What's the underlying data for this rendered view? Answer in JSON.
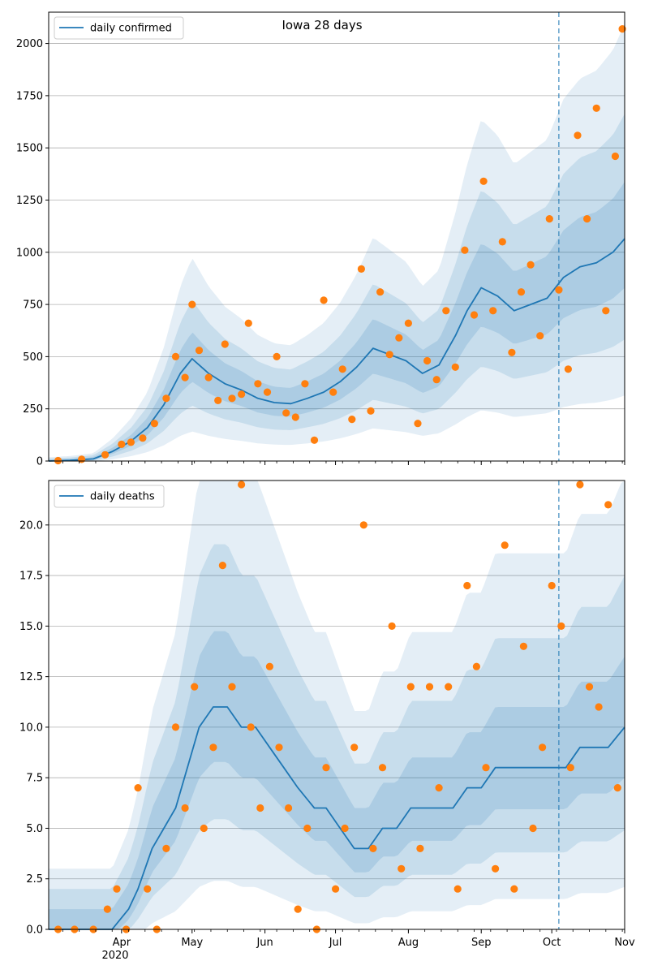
{
  "chart_data": [
    {
      "type": "line",
      "title": "Iowa 28 days",
      "legend": {
        "label": "daily confirmed",
        "placement": "top-left"
      },
      "xlim": [
        "2020-03-01",
        "2020-11-01"
      ],
      "ylim": [
        0,
        2150
      ],
      "yticks": [
        0,
        250,
        500,
        750,
        1000,
        1250,
        1500,
        1750,
        2000
      ],
      "ytick_labels": [
        "0",
        "250",
        "500",
        "750",
        "1000",
        "1250",
        "1500",
        "1750",
        "2000"
      ],
      "grid": "horizontal",
      "vline_date": "2020-10-04",
      "series": [
        {
          "name": "daily confirmed",
          "kind": "line",
          "x": [
            "2020-03-01",
            "2020-03-10",
            "2020-03-20",
            "2020-03-28",
            "2020-04-05",
            "2020-04-12",
            "2020-04-19",
            "2020-04-26",
            "2020-05-01",
            "2020-05-08",
            "2020-05-15",
            "2020-05-22",
            "2020-05-29",
            "2020-06-05",
            "2020-06-12",
            "2020-06-19",
            "2020-06-26",
            "2020-07-03",
            "2020-07-10",
            "2020-07-17",
            "2020-07-24",
            "2020-07-31",
            "2020-08-07",
            "2020-08-14",
            "2020-08-21",
            "2020-08-26",
            "2020-09-01",
            "2020-09-08",
            "2020-09-15",
            "2020-09-22",
            "2020-09-29",
            "2020-10-06",
            "2020-10-13",
            "2020-10-20",
            "2020-10-27",
            "2020-11-01"
          ],
          "y": [
            0,
            3,
            10,
            45,
            95,
            160,
            270,
            420,
            490,
            420,
            370,
            340,
            300,
            280,
            275,
            300,
            330,
            380,
            450,
            540,
            510,
            480,
            420,
            460,
            600,
            720,
            830,
            790,
            720,
            750,
            780,
            880,
            930,
            950,
            1000,
            1065
          ]
        },
        {
          "name": "",
          "kind": "scatter",
          "x": [
            "2020-03-05",
            "2020-03-15",
            "2020-03-25",
            "2020-04-01",
            "2020-04-05",
            "2020-04-10",
            "2020-04-15",
            "2020-04-20",
            "2020-04-24",
            "2020-04-28",
            "2020-05-01",
            "2020-05-04",
            "2020-05-08",
            "2020-05-12",
            "2020-05-15",
            "2020-05-18",
            "2020-05-22",
            "2020-05-25",
            "2020-05-29",
            "2020-06-02",
            "2020-06-06",
            "2020-06-10",
            "2020-06-14",
            "2020-06-18",
            "2020-06-22",
            "2020-06-26",
            "2020-06-30",
            "2020-07-04",
            "2020-07-08",
            "2020-07-12",
            "2020-07-16",
            "2020-07-20",
            "2020-07-24",
            "2020-07-28",
            "2020-08-01",
            "2020-08-05",
            "2020-08-09",
            "2020-08-13",
            "2020-08-17",
            "2020-08-21",
            "2020-08-25",
            "2020-08-29",
            "2020-09-02",
            "2020-09-06",
            "2020-09-10",
            "2020-09-14",
            "2020-09-18",
            "2020-09-22",
            "2020-09-26",
            "2020-09-30",
            "2020-10-04",
            "2020-10-08",
            "2020-10-12",
            "2020-10-16",
            "2020-10-20",
            "2020-10-24",
            "2020-10-28",
            "2020-10-31"
          ],
          "y": [
            2,
            8,
            30,
            80,
            90,
            110,
            180,
            300,
            500,
            400,
            750,
            530,
            400,
            290,
            560,
            300,
            320,
            660,
            370,
            330,
            500,
            230,
            210,
            370,
            100,
            770,
            330,
            440,
            200,
            920,
            240,
            810,
            510,
            590,
            660,
            180,
            480,
            390,
            720,
            450,
            1010,
            700,
            1340,
            720,
            1050,
            520,
            810,
            940,
            600,
            1160,
            820,
            440,
            1560,
            1160,
            1690,
            720,
            1460,
            2070
          ]
        }
      ]
    },
    {
      "type": "line",
      "legend": {
        "label": "daily deaths",
        "placement": "top-left"
      },
      "xlim": [
        "2020-03-01",
        "2020-11-01"
      ],
      "ylim": [
        0,
        22.2
      ],
      "yticks": [
        0,
        2.5,
        5,
        7.5,
        10,
        12.5,
        15,
        17.5,
        20
      ],
      "ytick_labels": [
        "0.0",
        "2.5",
        "5.0",
        "7.5",
        "10.0",
        "12.5",
        "15.0",
        "17.5",
        "20.0"
      ],
      "xticks": [
        "2020-04-01",
        "2020-05-01",
        "2020-06-01",
        "2020-07-01",
        "2020-08-01",
        "2020-09-01",
        "2020-10-01",
        "2020-11-01"
      ],
      "xtick_labels": [
        "Apr",
        "May",
        "Jun",
        "Jul",
        "Aug",
        "Sep",
        "Oct",
        "Nov"
      ],
      "xtick_year_label": "2020",
      "grid": "horizontal",
      "vline_date": "2020-10-04",
      "series": [
        {
          "name": "daily deaths",
          "kind": "line",
          "x": [
            "2020-03-01",
            "2020-03-28",
            "2020-04-04",
            "2020-04-08",
            "2020-04-14",
            "2020-04-19",
            "2020-04-24",
            "2020-04-29",
            "2020-05-04",
            "2020-05-10",
            "2020-05-16",
            "2020-05-22",
            "2020-05-28",
            "2020-06-03",
            "2020-06-09",
            "2020-06-15",
            "2020-06-22",
            "2020-06-27",
            "2020-07-03",
            "2020-07-09",
            "2020-07-15",
            "2020-07-21",
            "2020-07-27",
            "2020-08-02",
            "2020-08-08",
            "2020-08-14",
            "2020-08-20",
            "2020-08-26",
            "2020-09-01",
            "2020-09-07",
            "2020-09-13",
            "2020-09-19",
            "2020-09-25",
            "2020-10-01",
            "2020-10-07",
            "2020-10-13",
            "2020-10-19",
            "2020-10-25",
            "2020-11-01"
          ],
          "y": [
            0,
            0,
            1,
            2,
            4,
            5,
            6,
            8,
            10,
            11,
            11,
            10,
            10,
            9,
            8,
            7,
            6,
            6,
            5,
            4,
            4,
            5,
            5,
            6,
            6,
            6,
            6,
            7,
            7,
            8,
            8,
            8,
            8,
            8,
            8,
            9,
            9,
            9,
            10
          ]
        },
        {
          "name": "",
          "kind": "scatter",
          "x": [
            "2020-03-05",
            "2020-03-12",
            "2020-03-20",
            "2020-03-26",
            "2020-03-30",
            "2020-04-03",
            "2020-04-08",
            "2020-04-12",
            "2020-04-16",
            "2020-04-20",
            "2020-04-24",
            "2020-04-28",
            "2020-05-02",
            "2020-05-06",
            "2020-05-10",
            "2020-05-14",
            "2020-05-18",
            "2020-05-22",
            "2020-05-26",
            "2020-05-30",
            "2020-06-03",
            "2020-06-07",
            "2020-06-11",
            "2020-06-15",
            "2020-06-19",
            "2020-06-23",
            "2020-06-27",
            "2020-07-01",
            "2020-07-05",
            "2020-07-09",
            "2020-07-13",
            "2020-07-17",
            "2020-07-21",
            "2020-07-25",
            "2020-07-29",
            "2020-08-02",
            "2020-08-06",
            "2020-08-10",
            "2020-08-14",
            "2020-08-18",
            "2020-08-22",
            "2020-08-26",
            "2020-08-30",
            "2020-09-03",
            "2020-09-07",
            "2020-09-11",
            "2020-09-15",
            "2020-09-19",
            "2020-09-23",
            "2020-09-27",
            "2020-10-01",
            "2020-10-05",
            "2020-10-09",
            "2020-10-13",
            "2020-10-17",
            "2020-10-21",
            "2020-10-25",
            "2020-10-29"
          ],
          "y": [
            0,
            0,
            0,
            1,
            2,
            0,
            7,
            2,
            0,
            4,
            10,
            6,
            12,
            5,
            9,
            18,
            12,
            22,
            10,
            6,
            13,
            9,
            6,
            1,
            5,
            0,
            8,
            2,
            5,
            9,
            20,
            4,
            8,
            15,
            3,
            12,
            4,
            12,
            7,
            12,
            2,
            17,
            13,
            8,
            3,
            19,
            2,
            14,
            5,
            9,
            17,
            15,
            8,
            22,
            12,
            11,
            21,
            7
          ]
        }
      ]
    }
  ]
}
